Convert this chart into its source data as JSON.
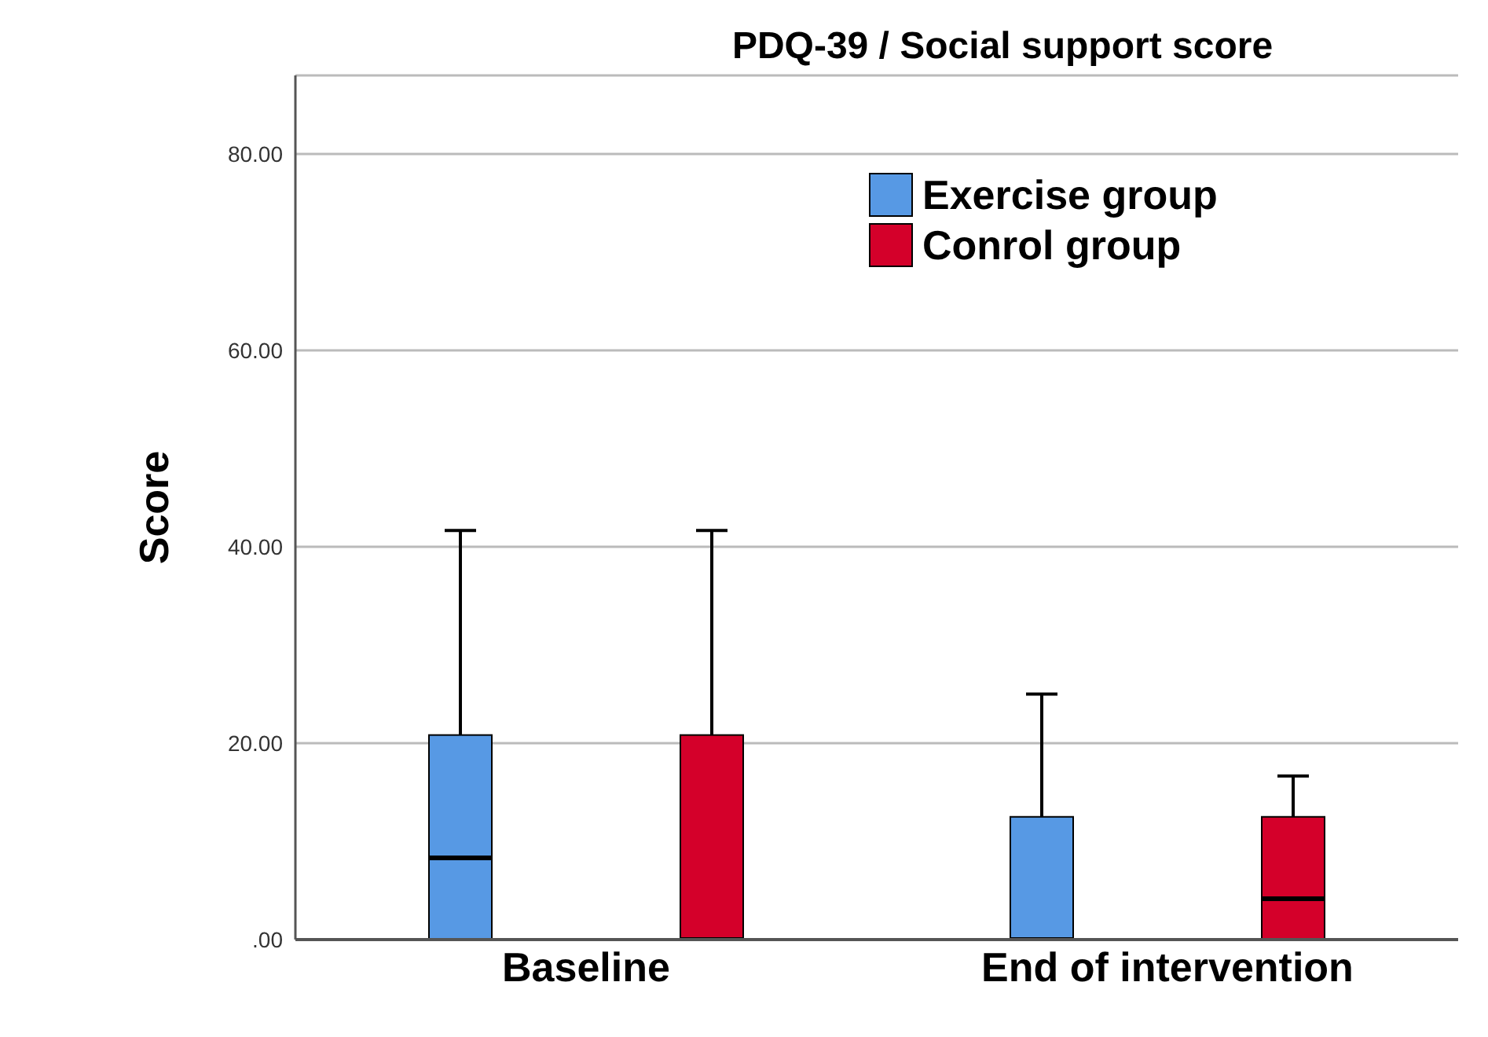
{
  "chart_data": {
    "type": "box",
    "title": "PDQ-39 / Social support score",
    "ylabel": "Score",
    "categories": [
      "Baseline",
      "End of intervention"
    ],
    "series": [
      {
        "name": "Exercise group",
        "color": "#5799e4",
        "boxes": [
          {
            "low": 0,
            "q1": 0,
            "median": 8.33,
            "q3": 20.83,
            "high": 41.67
          },
          {
            "low": 0,
            "q1": 0,
            "median": 0,
            "q3": 12.5,
            "high": 25
          }
        ]
      },
      {
        "name": "Conrol group",
        "color": "#d4002a",
        "boxes": [
          {
            "low": 0,
            "q1": 0,
            "median": 0,
            "q3": 20.83,
            "high": 41.67
          },
          {
            "low": 0,
            "q1": 0,
            "median": 4.17,
            "q3": 12.5,
            "high": 16.67
          }
        ]
      }
    ],
    "ylim": [
      0,
      88
    ],
    "yticks": [
      {
        "value": 0,
        "label": ".00"
      },
      {
        "value": 20,
        "label": "20.00"
      },
      {
        "value": 40,
        "label": "40.00"
      },
      {
        "value": 60,
        "label": "60.00"
      },
      {
        "value": 80,
        "label": "80.00"
      }
    ],
    "grid": "y",
    "legend": "top right"
  }
}
